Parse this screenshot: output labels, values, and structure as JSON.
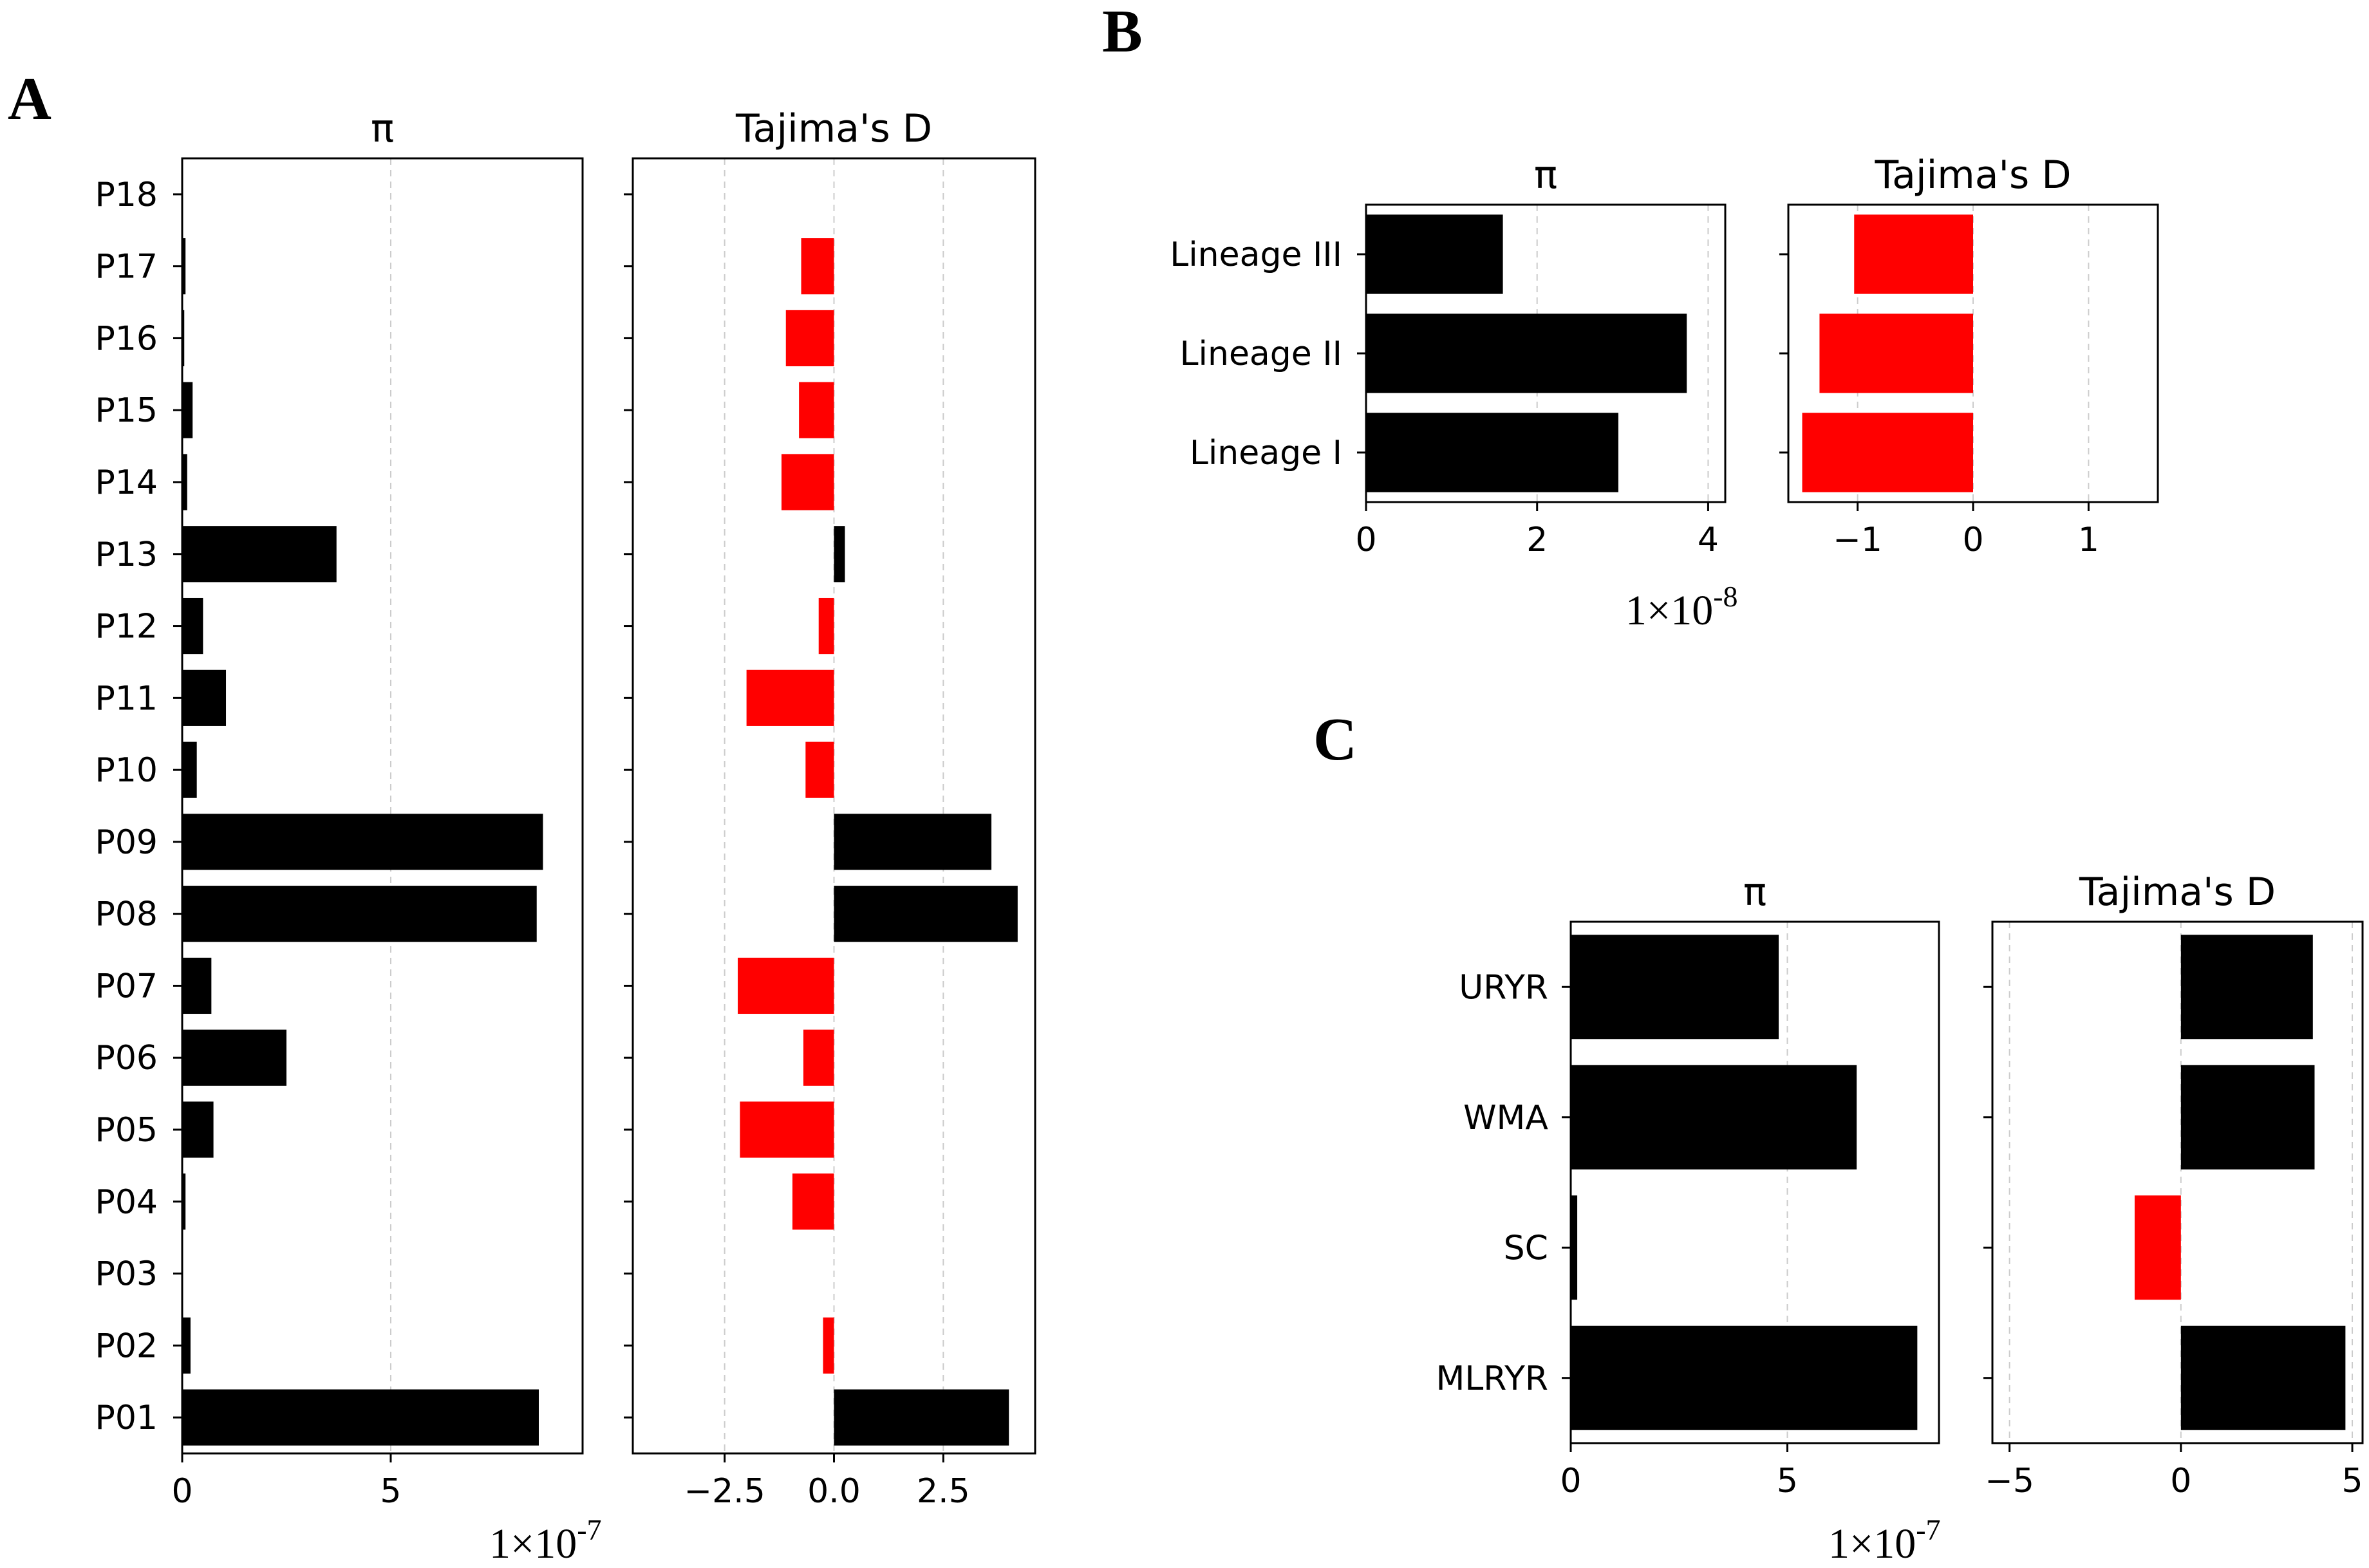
{
  "panel_labels": [
    "A",
    "B",
    "C"
  ],
  "colors": {
    "positive": "#000000",
    "negative": "#ff0000",
    "grid": "#cccccc"
  },
  "chart_data": [
    {
      "type": "bar",
      "orientation": "horizontal",
      "panel": "A",
      "title": "π",
      "categories": [
        "P01",
        "P02",
        "P03",
        "P04",
        "P05",
        "P06",
        "P07",
        "P08",
        "P09",
        "P10",
        "P11",
        "P12",
        "P13",
        "P14",
        "P15",
        "P16",
        "P17",
        "P18"
      ],
      "values": [
        8.55,
        0.2,
        0.0,
        0.08,
        0.75,
        2.5,
        0.7,
        8.5,
        8.65,
        0.35,
        1.05,
        0.5,
        3.7,
        0.12,
        0.25,
        0.05,
        0.08,
        0.0
      ],
      "xlim": [
        0,
        9.6
      ],
      "xticks": [
        0,
        5
      ],
      "xtick_labels": [
        "0",
        "5"
      ],
      "scale_label": {
        "base": "1×10",
        "exp": "-7"
      },
      "grid": "x-dashed"
    },
    {
      "type": "bar",
      "orientation": "horizontal",
      "panel": "A",
      "title": "Tajima's D",
      "categories": [
        "P01",
        "P02",
        "P03",
        "P04",
        "P05",
        "P06",
        "P07",
        "P08",
        "P09",
        "P10",
        "P11",
        "P12",
        "P13",
        "P14",
        "P15",
        "P16",
        "P17",
        "P18"
      ],
      "values": [
        4.0,
        -0.25,
        0.0,
        -0.95,
        -2.15,
        -0.7,
        -2.2,
        4.2,
        3.6,
        -0.65,
        -2.0,
        -0.35,
        0.25,
        -1.2,
        -0.8,
        -1.1,
        -0.75,
        0.0
      ],
      "xlim": [
        -4.6,
        4.6
      ],
      "xticks": [
        -2.5,
        0.0,
        2.5
      ],
      "xtick_labels": [
        "−2.5",
        "0.0",
        "2.5"
      ],
      "grid": "x-dashed"
    },
    {
      "type": "bar",
      "orientation": "horizontal",
      "panel": "B",
      "title": "π",
      "categories": [
        "Lineage I",
        "Lineage II",
        "Lineage III"
      ],
      "values": [
        2.95,
        3.75,
        1.6
      ],
      "xlim": [
        0,
        4.2
      ],
      "xticks": [
        0,
        2,
        4
      ],
      "xtick_labels": [
        "0",
        "2",
        "4"
      ],
      "scale_label": {
        "base": "1×10",
        "exp": "-8"
      },
      "grid": "x-dashed"
    },
    {
      "type": "bar",
      "orientation": "horizontal",
      "panel": "B",
      "title": "Tajima's D",
      "categories": [
        "Lineage I",
        "Lineage II",
        "Lineage III"
      ],
      "values": [
        -1.48,
        -1.33,
        -1.03
      ],
      "xlim": [
        -1.6,
        1.6
      ],
      "xticks": [
        -1,
        0,
        1
      ],
      "xtick_labels": [
        "−1",
        "0",
        "1"
      ],
      "grid": "x-dashed"
    },
    {
      "type": "bar",
      "orientation": "horizontal",
      "panel": "C",
      "title": "π",
      "categories": [
        "MLRYR",
        "SC",
        "WMA",
        "URYR"
      ],
      "values": [
        8.0,
        0.15,
        6.6,
        4.8
      ],
      "xlim": [
        0,
        8.5
      ],
      "xticks": [
        0,
        5
      ],
      "xtick_labels": [
        "0",
        "5"
      ],
      "scale_label": {
        "base": "1×10",
        "exp": "-7"
      },
      "grid": "x-dashed"
    },
    {
      "type": "bar",
      "orientation": "horizontal",
      "panel": "C",
      "title": "Tajima's D",
      "categories": [
        "MLRYR",
        "SC",
        "WMA",
        "URYR"
      ],
      "values": [
        4.8,
        -1.35,
        3.9,
        3.85
      ],
      "xlim": [
        -5.5,
        5.3
      ],
      "xticks": [
        -5,
        0,
        5
      ],
      "xtick_labels": [
        "−5",
        "0",
        "5"
      ],
      "grid": "x-dashed"
    }
  ]
}
